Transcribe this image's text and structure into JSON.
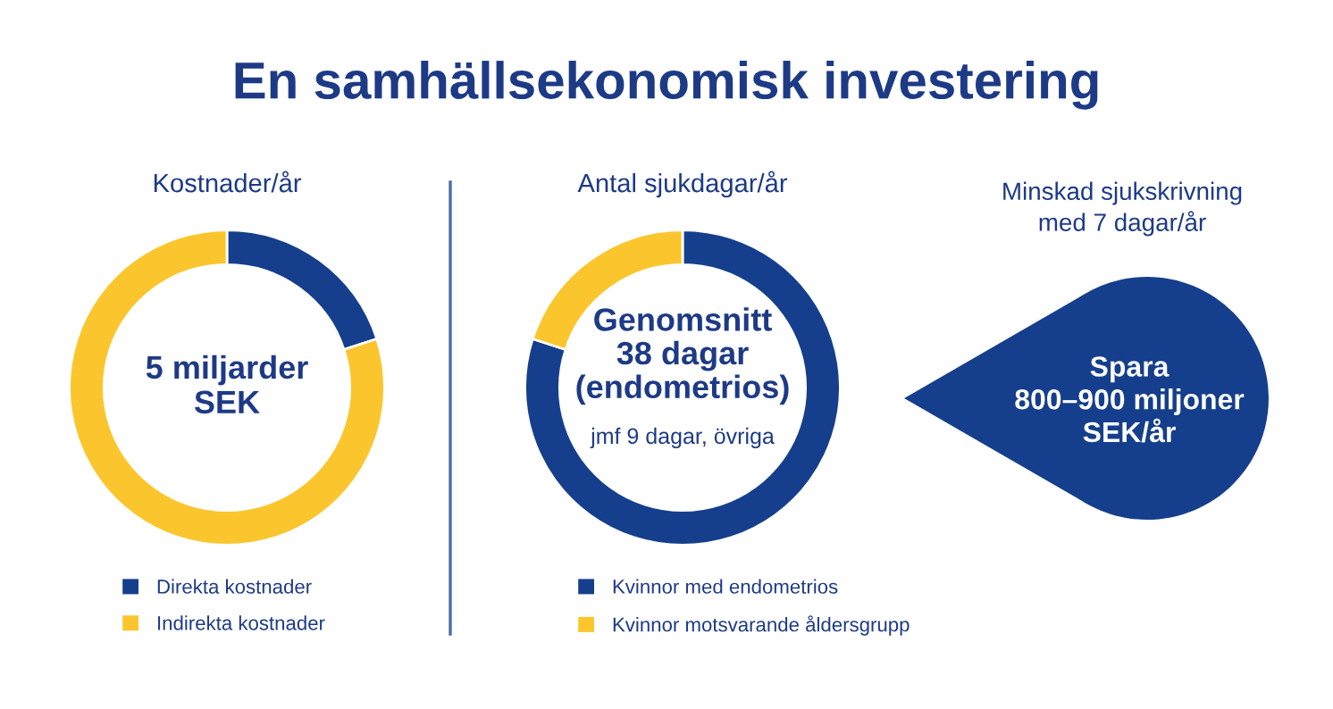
{
  "chart_data": [
    {
      "type": "other",
      "title": "En samhällsekonomisk investering"
    },
    {
      "type": "donut",
      "title": "Kostnader/år",
      "categories": [
        "Direkta kostnader",
        "Indirekta kostnader"
      ],
      "values": [
        20,
        80
      ],
      "colors": [
        "#153f8c",
        "#fbc62d"
      ],
      "legend": "bottom",
      "annotations": [
        "5 miljarder\nSEK"
      ]
    },
    {
      "type": "donut",
      "title": "Antal sjukdagar/år",
      "categories": [
        "Kvinnor med endometrios",
        "Kvinnor motsvarande åldersgrupp"
      ],
      "values": [
        80,
        20
      ],
      "colors": [
        "#153f8c",
        "#fbc62d"
      ],
      "legend": "bottom",
      "annotations": [
        "Genomsnitt\n38 dagar\n(endometrios)",
        "jmf 9 dagar, övriga"
      ]
    },
    {
      "type": "other",
      "title": "Minskad sjukskrivning\nmed 7 dagar/år",
      "annotations": [
        "Spara\n800–900 miljoner\nSEK/år"
      ]
    }
  ]
}
